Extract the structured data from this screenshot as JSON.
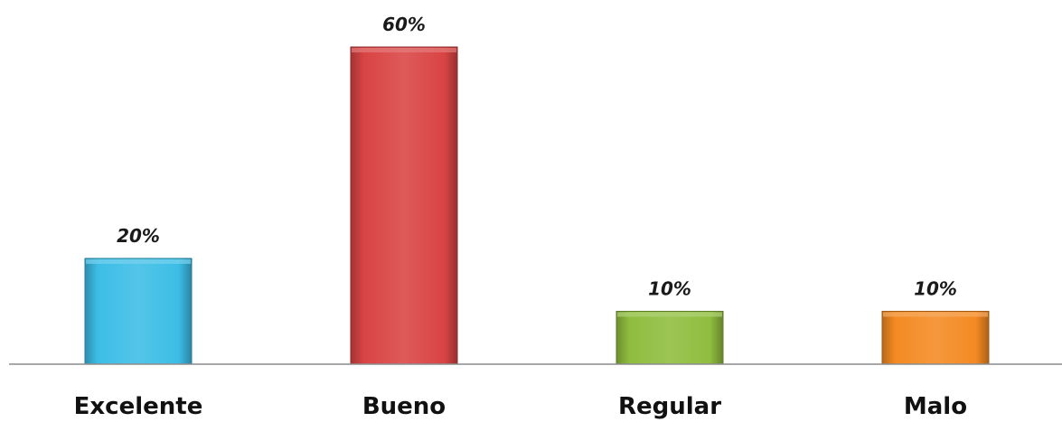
{
  "chart_data": {
    "type": "bar",
    "categories": [
      "Excelente",
      "Bueno",
      "Regular",
      "Malo"
    ],
    "values": [
      20,
      60,
      10,
      10
    ],
    "data_labels": [
      "20%",
      "60%",
      "10%",
      "10%"
    ],
    "colors": [
      "#3cbde6",
      "#d94444",
      "#8fbd3e",
      "#f48a22"
    ],
    "value_format": "percent",
    "ylim": [
      0,
      60
    ],
    "grid": false,
    "legend": "none"
  }
}
